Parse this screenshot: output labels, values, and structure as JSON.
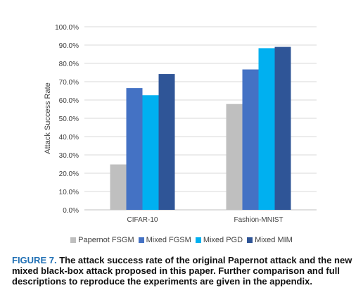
{
  "chart_data": {
    "type": "bar",
    "categories": [
      "CIFAR-10",
      "Fashion-MNIST"
    ],
    "series": [
      {
        "name": "Papernot FSGM",
        "values": [
          24.8,
          57.8
        ],
        "color": "#bfbfbf"
      },
      {
        "name": "Mixed FGSM",
        "values": [
          66.5,
          76.7
        ],
        "color": "#4472c4"
      },
      {
        "name": "Mixed PGD",
        "values": [
          62.6,
          88.3
        ],
        "color": "#00b0f0"
      },
      {
        "name": "Mixed MIM",
        "values": [
          74.2,
          89.0
        ],
        "color": "#2f5597"
      }
    ],
    "ylabel": "Attack Success Rate",
    "ylim": [
      0,
      100
    ],
    "yticks": [
      "0.0%",
      "10.0%",
      "20.0%",
      "30.0%",
      "40.0%",
      "50.0%",
      "60.0%",
      "70.0%",
      "80.0%",
      "90.0%",
      "100.0%"
    ],
    "grid": true,
    "legend": "bottom"
  },
  "caption": {
    "label": "FIGURE 7.",
    "text": "The attack success rate of the original Papernot attack and the new mixed black-box attack proposed in this paper. Further comparison and full descriptions to reproduce the experiments are given in the appendix."
  }
}
